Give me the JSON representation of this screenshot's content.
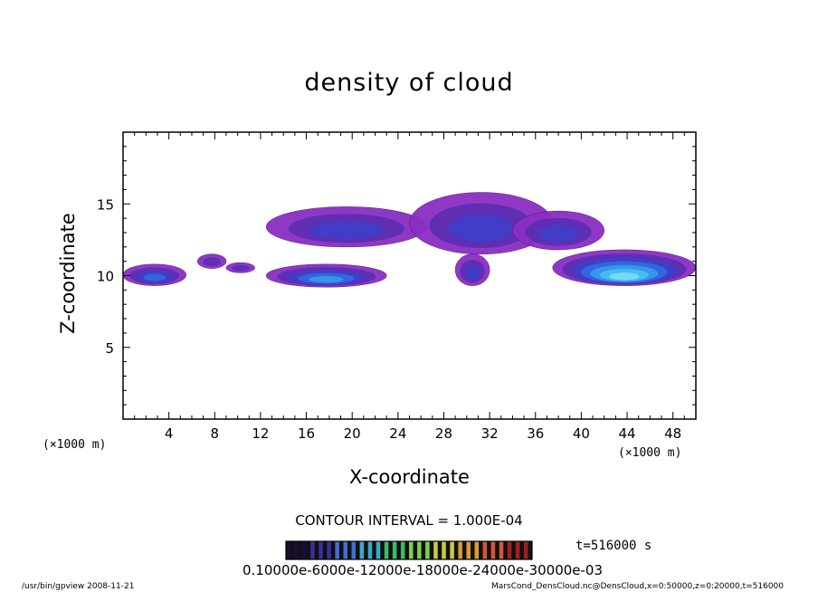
{
  "chart_data": {
    "type": "contour",
    "title": "density of cloud",
    "xlabel": "X-coordinate",
    "ylabel": "Z-coordinate",
    "x_unit_label": "(×1000 m)",
    "x_unit_label_right": "(×1000 m)",
    "xlim": [
      0,
      50
    ],
    "ylim": [
      0,
      20
    ],
    "x_ticks": [
      4,
      8,
      12,
      16,
      20,
      24,
      28,
      32,
      36,
      40,
      44,
      48
    ],
    "y_ticks": [
      5,
      10,
      15
    ],
    "contour_interval_text": "CONTOUR INTERVAL = 1.000E-04",
    "time_text": "t=516000 s",
    "colorbar_tick_text": "0.10000e-6000e-12000e-18000e-24000e-30000e-03",
    "colorbar_levels": [
      0.0001,
      0.0006,
      0.0012,
      0.0018,
      0.0024,
      0.003
    ],
    "colorbar_colors": [
      "#1a0d3a",
      "#3b2f9e",
      "#3f6fd6",
      "#39a8c8",
      "#3db86a",
      "#7fcf4a",
      "#c8c84a",
      "#d89a3a",
      "#d4553a",
      "#a02020"
    ],
    "regions": [
      {
        "name": "left-edge-cloud",
        "x": [
          0,
          5.5
        ],
        "z": [
          9.3,
          10.8
        ],
        "peak_level": 3
      },
      {
        "name": "small-patch-1",
        "x": [
          6.5,
          9.0
        ],
        "z": [
          10.5,
          11.5
        ],
        "peak_level": 1
      },
      {
        "name": "small-patch-2",
        "x": [
          9.0,
          11.5
        ],
        "z": [
          10.2,
          10.9
        ],
        "peak_level": 1
      },
      {
        "name": "low-cloud-mid",
        "x": [
          12.5,
          23.0
        ],
        "z": [
          9.2,
          10.8
        ],
        "peak_level": 4
      },
      {
        "name": "upper-band-left",
        "x": [
          12.5,
          26.5
        ],
        "z": [
          12.0,
          14.8
        ],
        "peak_level": 2
      },
      {
        "name": "upper-band-center",
        "x": [
          25.0,
          37.5
        ],
        "z": [
          11.5,
          15.8
        ],
        "peak_level": 2
      },
      {
        "name": "upper-band-right",
        "x": [
          34.0,
          42.0
        ],
        "z": [
          11.8,
          14.5
        ],
        "peak_level": 2
      },
      {
        "name": "low-cloud-center",
        "x": [
          29.0,
          32.0
        ],
        "z": [
          9.3,
          11.5
        ],
        "peak_level": 2
      },
      {
        "name": "low-cloud-right",
        "x": [
          37.5,
          50.0
        ],
        "z": [
          9.3,
          11.8
        ],
        "peak_level": 6
      }
    ]
  },
  "footer": {
    "left": "/usr/bin/gpview  2008-11-21",
    "right": "MarsCond_DensCloud.nc@DensCloud,x=0:50000,z=0:20000,t=516000"
  }
}
